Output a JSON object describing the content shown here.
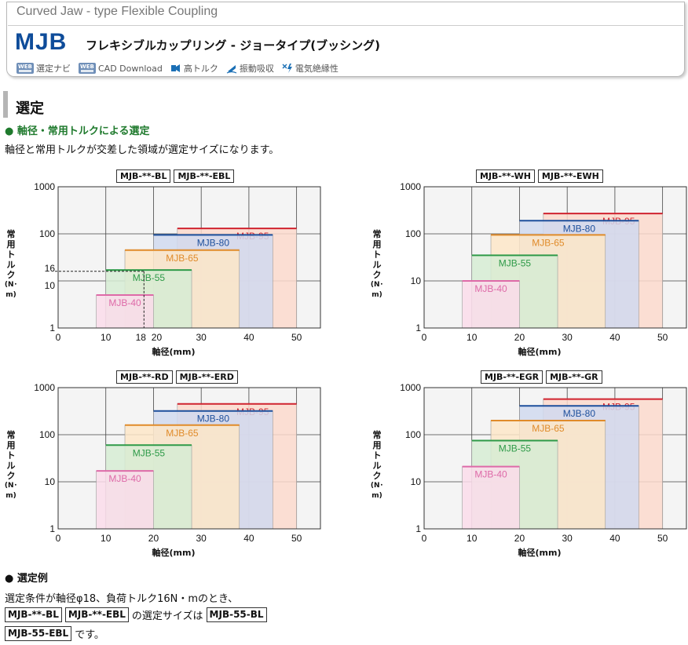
{
  "header": {
    "subtitle": "Curved Jaw - type Flexible Coupling",
    "code": "MJB",
    "title_jp": "フレキシブルカップリング  -  ジョータイプ(ブッシング)",
    "icons": [
      {
        "label": "選定ナビ",
        "icon": "web-badge-icon",
        "badge": "WEB"
      },
      {
        "label": "CAD Download",
        "icon": "web-badge-icon",
        "badge": "WEB"
      },
      {
        "label": "高トルク",
        "icon": "high-torque-icon"
      },
      {
        "label": "振動吸収",
        "icon": "vibration-absorb-icon"
      },
      {
        "label": "電気絶縁性",
        "icon": "electric-insulation-icon"
      }
    ]
  },
  "section": {
    "title": "選定",
    "subheading": "● 軸径・常用トルクによる選定",
    "description": "軸径と常用トルクが交差した領域が選定サイズになります。"
  },
  "colors": {
    "MJB-95": {
      "stroke": "#d0232f",
      "fill": "#fbd9cc"
    },
    "MJB-80": {
      "stroke": "#1d4f9c",
      "fill": "#d0d9ef"
    },
    "MJB-65": {
      "stroke": "#e08b2a",
      "fill": "#fde6c8"
    },
    "MJB-55": {
      "stroke": "#2e9a48",
      "fill": "#d6ecd3"
    },
    "MJB-40": {
      "stroke": "#de6aa8",
      "fill": "#fadcea"
    }
  },
  "charts_common": {
    "ylabel": [
      "常",
      "用",
      "ト",
      "ル",
      "ク"
    ],
    "yunit": "(N･m)",
    "xlabel": "軸径(mm)"
  },
  "chart_data": [
    {
      "type": "area",
      "tags": [
        "MJB-**-BL",
        "MJB-**-EBL"
      ],
      "xlim": [
        0,
        55
      ],
      "ylim": [
        1,
        1000
      ],
      "yscale": "log",
      "xticks": [
        "0",
        "10",
        "18",
        "20",
        "30",
        "40",
        "50"
      ],
      "yticks": [
        "1",
        "10",
        "16",
        "100",
        "1000"
      ],
      "series": [
        {
          "name": "MJB-95",
          "x": [
            25,
            50
          ],
          "torque": 130
        },
        {
          "name": "MJB-80",
          "x": [
            20,
            45
          ],
          "torque": 95
        },
        {
          "name": "MJB-65",
          "x": [
            14,
            38
          ],
          "torque": 45
        },
        {
          "name": "MJB-55",
          "x": [
            10,
            28
          ],
          "torque": 17
        },
        {
          "name": "MJB-40",
          "x": [
            8,
            20
          ],
          "torque": 5
        }
      ],
      "guide": {
        "x": 18,
        "y": 16
      }
    },
    {
      "type": "area",
      "tags": [
        "MJB-**-WH",
        "MJB-**-EWH"
      ],
      "xlim": [
        0,
        55
      ],
      "ylim": [
        1,
        1000
      ],
      "yscale": "log",
      "xticks": [
        "0",
        "10",
        "20",
        "30",
        "40",
        "50"
      ],
      "yticks": [
        "1",
        "10",
        "100",
        "1000"
      ],
      "series": [
        {
          "name": "MJB-95",
          "x": [
            25,
            50
          ],
          "torque": 270
        },
        {
          "name": "MJB-80",
          "x": [
            20,
            45
          ],
          "torque": 190
        },
        {
          "name": "MJB-65",
          "x": [
            14,
            38
          ],
          "torque": 95
        },
        {
          "name": "MJB-55",
          "x": [
            10,
            28
          ],
          "torque": 35
        },
        {
          "name": "MJB-40",
          "x": [
            8,
            20
          ],
          "torque": 10
        }
      ]
    },
    {
      "type": "area",
      "tags": [
        "MJB-**-RD",
        "MJB-**-ERD"
      ],
      "xlim": [
        0,
        55
      ],
      "ylim": [
        1,
        1000
      ],
      "yscale": "log",
      "xticks": [
        "0",
        "10",
        "20",
        "30",
        "40",
        "50"
      ],
      "yticks": [
        "1",
        "10",
        "100",
        "1000"
      ],
      "series": [
        {
          "name": "MJB-95",
          "x": [
            25,
            50
          ],
          "torque": 450
        },
        {
          "name": "MJB-80",
          "x": [
            20,
            45
          ],
          "torque": 320
        },
        {
          "name": "MJB-65",
          "x": [
            14,
            38
          ],
          "torque": 160
        },
        {
          "name": "MJB-55",
          "x": [
            10,
            28
          ],
          "torque": 60
        },
        {
          "name": "MJB-40",
          "x": [
            8,
            20
          ],
          "torque": 17
        }
      ]
    },
    {
      "type": "area",
      "tags": [
        "MJB-**-EGR",
        "MJB-**-GR"
      ],
      "xlim": [
        0,
        55
      ],
      "ylim": [
        1,
        1000
      ],
      "yscale": "log",
      "xticks": [
        "0",
        "10",
        "20",
        "30",
        "40",
        "50"
      ],
      "yticks": [
        "1",
        "10",
        "100",
        "1000"
      ],
      "series": [
        {
          "name": "MJB-95",
          "x": [
            25,
            50
          ],
          "torque": 570
        },
        {
          "name": "MJB-80",
          "x": [
            20,
            45
          ],
          "torque": 410
        },
        {
          "name": "MJB-65",
          "x": [
            14,
            38
          ],
          "torque": 200
        },
        {
          "name": "MJB-55",
          "x": [
            10,
            28
          ],
          "torque": 75
        },
        {
          "name": "MJB-40",
          "x": [
            8,
            20
          ],
          "torque": 21
        }
      ]
    }
  ],
  "example": {
    "heading": "● 選定例",
    "line1": "選定条件が軸径φ18、負荷トルク16N・mのとき、",
    "tag1": "MJB-**-BL",
    "tag2": "MJB-**-EBL",
    "mid_text": "の選定サイズは",
    "result1": "MJB-55-BL",
    "result2": "MJB-55-EBL",
    "end_text": "です。"
  }
}
